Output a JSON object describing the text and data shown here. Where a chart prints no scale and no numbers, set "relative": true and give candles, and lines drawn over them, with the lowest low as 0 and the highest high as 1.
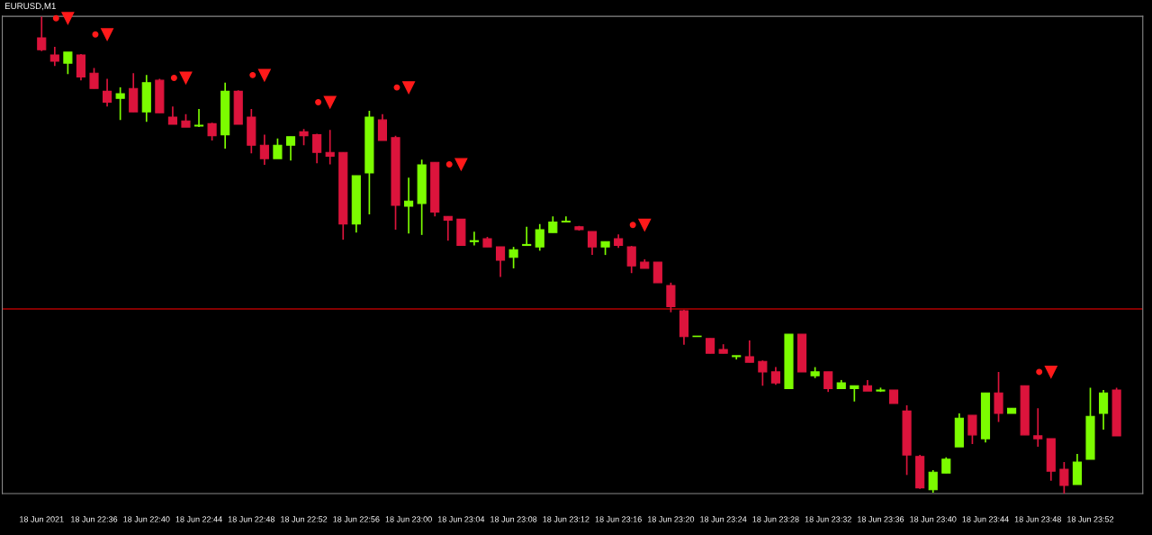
{
  "chart_data": {
    "type": "candlestick",
    "title": "EURUSD,M1",
    "relative": true,
    "grid": false,
    "tick_labels": "x",
    "x": [
      "2021-06-18T22:32",
      "2021-06-18T22:33",
      "2021-06-18T22:34",
      "2021-06-18T22:35",
      "2021-06-18T22:36",
      "2021-06-18T22:37",
      "2021-06-18T22:38",
      "2021-06-18T22:39",
      "2021-06-18T22:40",
      "2021-06-18T22:41",
      "2021-06-18T22:42",
      "2021-06-18T22:43",
      "2021-06-18T22:44",
      "2021-06-18T22:45",
      "2021-06-18T22:46",
      "2021-06-18T22:47",
      "2021-06-18T22:48",
      "2021-06-18T22:49",
      "2021-06-18T22:50",
      "2021-06-18T22:51",
      "2021-06-18T22:52",
      "2021-06-18T22:53",
      "2021-06-18T22:54",
      "2021-06-18T22:55",
      "2021-06-18T22:56",
      "2021-06-18T22:57",
      "2021-06-18T22:58",
      "2021-06-18T22:59",
      "2021-06-18T23:00",
      "2021-06-18T23:01",
      "2021-06-18T23:02",
      "2021-06-18T23:03",
      "2021-06-18T23:04",
      "2021-06-18T23:05",
      "2021-06-18T23:06",
      "2021-06-18T23:07",
      "2021-06-18T23:08",
      "2021-06-18T23:09",
      "2021-06-18T23:10",
      "2021-06-18T23:11",
      "2021-06-18T23:12",
      "2021-06-18T23:13",
      "2021-06-18T23:14",
      "2021-06-18T23:15",
      "2021-06-18T23:16",
      "2021-06-18T23:17",
      "2021-06-18T23:18",
      "2021-06-18T23:19",
      "2021-06-18T23:20",
      "2021-06-18T23:21",
      "2021-06-18T23:22",
      "2021-06-18T23:23",
      "2021-06-18T23:24",
      "2021-06-18T23:25",
      "2021-06-18T23:26",
      "2021-06-18T23:27",
      "2021-06-18T23:28",
      "2021-06-18T23:29",
      "2021-06-18T23:30",
      "2021-06-18T23:31",
      "2021-06-18T23:32",
      "2021-06-18T23:33",
      "2021-06-18T23:34",
      "2021-06-18T23:35",
      "2021-06-18T23:36",
      "2021-06-18T23:37",
      "2021-06-18T23:38",
      "2021-06-18T23:39",
      "2021-06-18T23:40",
      "2021-06-18T23:41",
      "2021-06-18T23:42",
      "2021-06-18T23:43",
      "2021-06-18T23:44",
      "2021-06-18T23:45",
      "2021-06-18T23:46",
      "2021-06-18T23:47",
      "2021-06-18T23:48",
      "2021-06-18T23:49",
      "2021-06-18T23:50",
      "2021-06-18T23:51",
      "2021-06-18T23:52",
      "2021-06-18T23:53",
      "2021-06-18T23:54"
    ],
    "ohlc": [
      [
        0.955,
        1.0,
        0.927,
        0.93
      ],
      [
        0.919,
        0.936,
        0.896,
        0.906
      ],
      [
        0.902,
        0.925,
        0.879,
        0.925
      ],
      [
        0.919,
        0.921,
        0.866,
        0.873
      ],
      [
        0.881,
        0.892,
        0.849,
        0.849
      ],
      [
        0.843,
        0.869,
        0.811,
        0.82
      ],
      [
        0.828,
        0.851,
        0.783,
        0.838
      ],
      [
        0.849,
        0.881,
        0.8,
        0.8
      ],
      [
        0.8,
        0.877,
        0.779,
        0.861
      ],
      [
        0.866,
        0.869,
        0.798,
        0.798
      ],
      [
        0.789,
        0.811,
        0.774,
        0.774
      ],
      [
        0.781,
        0.795,
        0.768,
        0.768
      ],
      [
        0.77,
        0.806,
        0.768,
        0.772
      ],
      [
        0.775,
        0.777,
        0.74,
        0.75
      ],
      [
        0.752,
        0.861,
        0.723,
        0.843
      ],
      [
        0.843,
        0.845,
        0.774,
        0.774
      ],
      [
        0.789,
        0.806,
        0.713,
        0.73
      ],
      [
        0.73,
        0.752,
        0.689,
        0.702
      ],
      [
        0.702,
        0.744,
        0.702,
        0.73
      ],
      [
        0.73,
        0.748,
        0.698,
        0.748
      ],
      [
        0.758,
        0.764,
        0.73,
        0.75
      ],
      [
        0.752,
        0.754,
        0.692,
        0.715
      ],
      [
        0.715,
        0.762,
        0.69,
        0.707
      ],
      [
        0.715,
        0.715,
        0.532,
        0.565
      ],
      [
        0.565,
        0.666,
        0.547,
        0.666
      ],
      [
        0.672,
        0.802,
        0.585,
        0.789
      ],
      [
        0.783,
        0.795,
        0.74,
        0.74
      ],
      [
        0.746,
        0.75,
        0.553,
        0.604
      ],
      [
        0.602,
        0.662,
        0.545,
        0.613
      ],
      [
        0.608,
        0.7,
        0.542,
        0.689
      ],
      [
        0.694,
        0.694,
        0.581,
        0.59
      ],
      [
        0.581,
        0.581,
        0.53,
        0.573
      ],
      [
        0.575,
        0.575,
        0.52,
        0.52
      ],
      [
        0.528,
        0.549,
        0.52,
        0.53
      ],
      [
        0.534,
        0.538,
        0.517,
        0.517
      ],
      [
        0.517,
        0.517,
        0.454,
        0.489
      ],
      [
        0.495,
        0.517,
        0.472,
        0.511
      ],
      [
        0.52,
        0.559,
        0.519,
        0.522
      ],
      [
        0.517,
        0.565,
        0.509,
        0.553
      ],
      [
        0.547,
        0.581,
        0.547,
        0.569
      ],
      [
        0.569,
        0.581,
        0.568,
        0.571
      ],
      [
        0.559,
        0.561,
        0.551,
        0.553
      ],
      [
        0.549,
        0.549,
        0.5,
        0.517
      ],
      [
        0.517,
        0.528,
        0.5,
        0.528
      ],
      [
        0.534,
        0.543,
        0.515,
        0.52
      ],
      [
        0.517,
        0.519,
        0.462,
        0.477
      ],
      [
        0.485,
        0.491,
        0.472,
        0.472
      ],
      [
        0.485,
        0.485,
        0.442,
        0.442
      ],
      [
        0.436,
        0.442,
        0.38,
        0.392
      ],
      [
        0.383,
        0.385,
        0.312,
        0.329
      ],
      [
        0.329,
        0.33,
        0.329,
        0.33
      ],
      [
        0.325,
        0.325,
        0.294,
        0.294
      ],
      [
        0.302,
        0.313,
        0.294,
        0.294
      ],
      [
        0.287,
        0.289,
        0.281,
        0.289
      ],
      [
        0.287,
        0.321,
        0.275,
        0.275
      ],
      [
        0.277,
        0.279,
        0.226,
        0.255
      ],
      [
        0.255,
        0.265,
        0.228,
        0.232
      ],
      [
        0.22,
        0.334,
        0.22,
        0.334
      ],
      [
        0.334,
        0.334,
        0.255,
        0.255
      ],
      [
        0.247,
        0.265,
        0.242,
        0.255
      ],
      [
        0.255,
        0.255,
        0.213,
        0.22
      ],
      [
        0.22,
        0.238,
        0.22,
        0.232
      ],
      [
        0.22,
        0.226,
        0.193,
        0.226
      ],
      [
        0.226,
        0.238,
        0.215,
        0.215
      ],
      [
        0.215,
        0.222,
        0.213,
        0.217
      ],
      [
        0.217,
        0.217,
        0.189,
        0.189
      ],
      [
        0.173,
        0.185,
        0.039,
        0.081
      ],
      [
        0.078,
        0.081,
        0.01,
        0.012
      ],
      [
        0.008,
        0.049,
        0.002,
        0.045
      ],
      [
        0.043,
        0.076,
        0.043,
        0.072
      ],
      [
        0.098,
        0.168,
        0.098,
        0.158
      ],
      [
        0.164,
        0.164,
        0.104,
        0.123
      ],
      [
        0.115,
        0.211,
        0.107,
        0.211
      ],
      [
        0.211,
        0.255,
        0.15,
        0.168
      ],
      [
        0.168,
        0.179,
        0.168,
        0.179
      ],
      [
        0.226,
        0.226,
        0.123,
        0.123
      ],
      [
        0.121,
        0.179,
        0.098,
        0.115
      ],
      [
        0.115,
        0.115,
        0.027,
        0.047
      ],
      [
        0.051,
        0.066,
        0.0,
        0.017
      ],
      [
        0.019,
        0.083,
        0.019,
        0.066
      ],
      [
        0.072,
        0.222,
        0.072,
        0.162
      ],
      [
        0.168,
        0.217,
        0.134,
        0.211
      ],
      [
        0.217,
        0.222,
        0.121,
        0.121
      ]
    ],
    "colors": [
      "#dc143c",
      "#dc143c",
      "#7cfc00",
      "#dc143c",
      "#dc143c",
      "#dc143c",
      "#7cfc00",
      "#dc143c",
      "#7cfc00",
      "#dc143c",
      "#dc143c",
      "#dc143c",
      "#7cfc00",
      "#dc143c",
      "#7cfc00",
      "#dc143c",
      "#dc143c",
      "#dc143c",
      "#7cfc00",
      "#7cfc00",
      "#dc143c",
      "#dc143c",
      "#dc143c",
      "#dc143c",
      "#7cfc00",
      "#7cfc00",
      "#dc143c",
      "#dc143c",
      "#7cfc00",
      "#7cfc00",
      "#dc143c",
      "#dc143c",
      "#dc143c",
      "#7cfc00",
      "#dc143c",
      "#dc143c",
      "#7cfc00",
      "#7cfc00",
      "#7cfc00",
      "#7cfc00",
      "#7cfc00",
      "#dc143c",
      "#dc143c",
      "#7cfc00",
      "#dc143c",
      "#dc143c",
      "#dc143c",
      "#dc143c",
      "#dc143c",
      "#dc143c",
      "#7cfc00",
      "#dc143c",
      "#dc143c",
      "#7cfc00",
      "#dc143c",
      "#dc143c",
      "#dc143c",
      "#7cfc00",
      "#dc143c",
      "#7cfc00",
      "#dc143c",
      "#7cfc00",
      "#7cfc00",
      "#dc143c",
      "#7cfc00",
      "#dc143c",
      "#dc143c",
      "#dc143c",
      "#7cfc00",
      "#7cfc00",
      "#7cfc00",
      "#dc143c",
      "#7cfc00",
      "#dc143c",
      "#7cfc00",
      "#dc143c",
      "#dc143c",
      "#dc143c",
      "#dc143c",
      "#7cfc00",
      "#7cfc00",
      "#7cfc00",
      "#dc143c"
    ],
    "series": [
      {
        "type": "scatter",
        "marker": "triangle",
        "color": "#ff1a1a",
        "x": [
          "2021-06-18T22:34",
          "2021-06-18T22:37",
          "2021-06-18T22:43",
          "2021-06-18T22:49",
          "2021-06-18T22:54",
          "2021-06-18T23:00",
          "2021-06-18T23:04",
          "2021-06-18T23:18",
          "2021-06-18T23:49"
        ],
        "values": [
          0.996,
          0.962,
          0.871,
          0.877,
          0.82,
          0.851,
          0.69,
          0.563,
          0.255
        ]
      }
    ],
    "ref_lines": [
      {
        "axis": "y",
        "value": 0.387,
        "color": "#b00000"
      }
    ],
    "xlim": [
      "2021-06-18T22:29",
      "2021-06-18T23:56"
    ],
    "xticks": [
      {
        "value": "2021-06-18T22:32",
        "label": "18 Jun 2021"
      },
      {
        "value": "2021-06-18T22:36",
        "label": "18 Jun 22:36"
      },
      {
        "value": "2021-06-18T22:40",
        "label": "18 Jun 22:40"
      },
      {
        "value": "2021-06-18T22:44",
        "label": "18 Jun 22:44"
      },
      {
        "value": "2021-06-18T22:48",
        "label": "18 Jun 22:48"
      },
      {
        "value": "2021-06-18T22:52",
        "label": "18 Jun 22:52"
      },
      {
        "value": "2021-06-18T22:56",
        "label": "18 Jun 22:56"
      },
      {
        "value": "2021-06-18T23:00",
        "label": "18 Jun 23:00"
      },
      {
        "value": "2021-06-18T23:04",
        "label": "18 Jun 23:04"
      },
      {
        "value": "2021-06-18T23:08",
        "label": "18 Jun 23:08"
      },
      {
        "value": "2021-06-18T23:12",
        "label": "18 Jun 23:12"
      },
      {
        "value": "2021-06-18T23:16",
        "label": "18 Jun 23:16"
      },
      {
        "value": "2021-06-18T23:20",
        "label": "18 Jun 23:20"
      },
      {
        "value": "2021-06-18T23:24",
        "label": "18 Jun 23:24"
      },
      {
        "value": "2021-06-18T23:28",
        "label": "18 Jun 23:28"
      },
      {
        "value": "2021-06-18T23:32",
        "label": "18 Jun 23:32"
      },
      {
        "value": "2021-06-18T23:36",
        "label": "18 Jun 23:36"
      },
      {
        "value": "2021-06-18T23:40",
        "label": "18 Jun 23:40"
      },
      {
        "value": "2021-06-18T23:44",
        "label": "18 Jun 23:44"
      },
      {
        "value": "2021-06-18T23:48",
        "label": "18 Jun 23:48"
      },
      {
        "value": "2021-06-18T23:52",
        "label": "18 Jun 23:52"
      }
    ]
  }
}
